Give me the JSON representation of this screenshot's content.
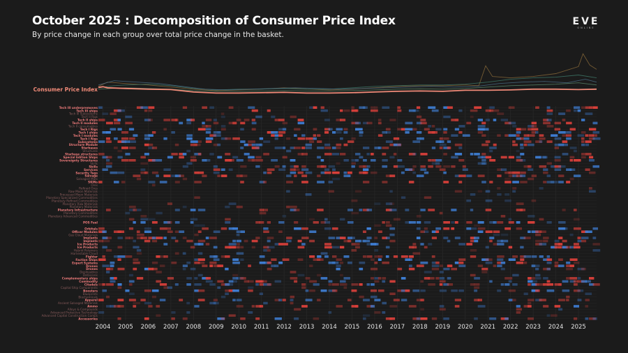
{
  "header": {
    "title": "October 2025 : Decomposition of Consumer Price Index",
    "subtitle": "By price change in each group over total price change in the basket."
  },
  "logo": {
    "main": "EVE",
    "sub": "ONLINE"
  },
  "colors": {
    "background": "#1b1b1b",
    "cpi": "#f08a78",
    "increase": "#d9403a",
    "decrease": "#3f7fd6",
    "group_label_on": "#f07c7c",
    "group_label_off": "#8a5c5c"
  },
  "chart_data": {
    "type": "heatmap",
    "cpi_label": "Consumer Price Index",
    "x": [
      "2004",
      "2005",
      "2006",
      "2007",
      "2008",
      "2009",
      "2010",
      "2011",
      "2012",
      "2013",
      "2014",
      "2015",
      "2016",
      "2017",
      "2018",
      "2019",
      "2020",
      "2021",
      "2022",
      "2023",
      "2024",
      "2025"
    ],
    "xlim": [
      2003.8,
      2025.8
    ],
    "line_series": [
      {
        "points": [
          [
            2003.8,
            1.25
          ],
          [
            2004.0,
            1.35
          ],
          [
            2004.2,
            1.2
          ],
          [
            2005,
            1.1
          ],
          [
            2006,
            1.0
          ],
          [
            2007,
            0.95
          ],
          [
            2008,
            0.6
          ],
          [
            2009,
            0.45
          ],
          [
            2010,
            0.45
          ],
          [
            2011,
            0.5
          ],
          [
            2012,
            0.55
          ],
          [
            2013,
            0.45
          ],
          [
            2014,
            0.45
          ],
          [
            2015,
            0.5
          ],
          [
            2016,
            0.6
          ],
          [
            2017,
            0.7
          ],
          [
            2018,
            0.75
          ],
          [
            2019,
            0.7
          ],
          [
            2020,
            0.85
          ],
          [
            2021,
            0.85
          ],
          [
            2022,
            0.9
          ],
          [
            2023,
            1.0
          ],
          [
            2024,
            1.0
          ],
          [
            2025,
            0.95
          ],
          [
            2025.8,
            1.0
          ]
        ],
        "cpi": true
      },
      {
        "points": [
          [
            2003.8,
            1.4
          ],
          [
            2004.2,
            2.0
          ],
          [
            2005,
            1.8
          ],
          [
            2006,
            1.6
          ],
          [
            2007,
            1.3
          ],
          [
            2008,
            1.0
          ],
          [
            2009,
            0.8
          ],
          [
            2010,
            0.9
          ],
          [
            2011,
            1.0
          ],
          [
            2012,
            1.2
          ],
          [
            2013,
            1.0
          ],
          [
            2014,
            0.9
          ],
          [
            2015,
            1.0
          ],
          [
            2016,
            1.2
          ],
          [
            2017,
            1.4
          ],
          [
            2018,
            1.5
          ],
          [
            2019,
            1.5
          ],
          [
            2020,
            1.6
          ],
          [
            2020.6,
            1.5
          ],
          [
            2020.9,
            4.3
          ],
          [
            2021.2,
            2.8
          ],
          [
            2022,
            2.6
          ],
          [
            2023,
            2.8
          ],
          [
            2024,
            3.2
          ],
          [
            2025,
            4.2
          ],
          [
            2025.2,
            6.0
          ],
          [
            2025.5,
            4.4
          ],
          [
            2025.8,
            3.8
          ]
        ]
      },
      {
        "points": [
          [
            2003.8,
            1.2
          ],
          [
            2004.5,
            1.5
          ],
          [
            2005,
            1.6
          ],
          [
            2006,
            1.7
          ],
          [
            2007,
            1.5
          ],
          [
            2008,
            1.1
          ],
          [
            2009,
            0.9
          ],
          [
            2010,
            1.0
          ],
          [
            2011,
            1.0
          ],
          [
            2012,
            1.1
          ],
          [
            2013,
            1.0
          ],
          [
            2014,
            1.0
          ],
          [
            2015,
            1.2
          ],
          [
            2016,
            1.4
          ],
          [
            2017,
            1.5
          ],
          [
            2018,
            1.6
          ],
          [
            2019,
            1.6
          ],
          [
            2020,
            1.7
          ],
          [
            2021,
            2.0
          ],
          [
            2022,
            2.4
          ],
          [
            2023,
            2.6
          ],
          [
            2024,
            2.7
          ],
          [
            2025,
            3.0
          ],
          [
            2025.8,
            2.6
          ]
        ]
      },
      {
        "points": [
          [
            2003.8,
            1.6
          ],
          [
            2004.5,
            2.2
          ],
          [
            2005.5,
            2.0
          ],
          [
            2006.5,
            1.8
          ],
          [
            2007.5,
            1.4
          ],
          [
            2008.5,
            1.0
          ],
          [
            2009.5,
            0.9
          ],
          [
            2010.5,
            1.0
          ],
          [
            2011.5,
            1.1
          ],
          [
            2012.5,
            1.2
          ],
          [
            2013.5,
            1.1
          ],
          [
            2014.5,
            1.0
          ],
          [
            2015.5,
            1.1
          ],
          [
            2016.5,
            1.2
          ],
          [
            2017.5,
            1.3
          ],
          [
            2018.5,
            1.4
          ],
          [
            2019.5,
            1.3
          ],
          [
            2020.5,
            1.4
          ],
          [
            2021.5,
            1.8
          ],
          [
            2022.5,
            2.0
          ],
          [
            2023.5,
            2.1
          ],
          [
            2024.5,
            1.9
          ],
          [
            2025.3,
            2.4
          ],
          [
            2025.8,
            2.0
          ]
        ]
      },
      {
        "points": [
          [
            2003.8,
            1.0
          ],
          [
            2005,
            1.2
          ],
          [
            2006,
            1.1
          ],
          [
            2007,
            1.0
          ],
          [
            2008,
            0.8
          ],
          [
            2009,
            0.7
          ],
          [
            2010,
            0.7
          ],
          [
            2011,
            0.75
          ],
          [
            2012,
            0.8
          ],
          [
            2013,
            0.75
          ],
          [
            2014,
            0.75
          ],
          [
            2015,
            0.8
          ],
          [
            2016,
            0.9
          ],
          [
            2017,
            1.0
          ],
          [
            2018,
            1.05
          ],
          [
            2019,
            1.0
          ],
          [
            2020,
            1.1
          ],
          [
            2021,
            1.3
          ],
          [
            2022,
            1.5
          ],
          [
            2023,
            1.6
          ],
          [
            2024,
            1.7
          ],
          [
            2025,
            1.9
          ],
          [
            2025.8,
            1.6
          ]
        ]
      }
    ],
    "line_ylim": [
      0,
      6.5
    ],
    "groups": [
      {
        "label": "Tech III underpremoves",
        "emph": true
      },
      {
        "label": "Tech III ships",
        "emph": true
      },
      {
        "label": "Tech III Subsystems",
        "emph": false
      },
      {
        "label": "Tech II Rigs",
        "emph": false
      },
      {
        "label": "Tech II ships",
        "emph": true
      },
      {
        "label": "Tech II modules",
        "emph": true
      },
      {
        "label": "Tech II consumables",
        "emph": false
      },
      {
        "label": "Tech I Rigs",
        "emph": true
      },
      {
        "label": "Tech I ships",
        "emph": true
      },
      {
        "label": "Tech I modules",
        "emph": true
      },
      {
        "label": "Tech I Rigs",
        "emph": true
      },
      {
        "label": "Subsystems",
        "emph": true
      },
      {
        "label": "Structure Module",
        "emph": true
      },
      {
        "label": "Starbases",
        "emph": true
      },
      {
        "label": "Structures",
        "emph": false
      },
      {
        "label": "Starbase structures",
        "emph": true
      },
      {
        "label": "Special Edition Ships",
        "emph": true
      },
      {
        "label": "Sovereignty Structures",
        "emph": true
      },
      {
        "label": "Skills",
        "emph": false
      },
      {
        "label": "Skills",
        "emph": true
      },
      {
        "label": "Services",
        "emph": true
      },
      {
        "label": "Security Tags",
        "emph": true
      },
      {
        "label": "Salvage",
        "emph": true
      },
      {
        "label": "Salvaged Mats",
        "emph": false
      },
      {
        "label": "SKINs",
        "emph": true
      },
      {
        "label": "Ores",
        "emph": false
      },
      {
        "label": "Refined Ores",
        "emph": false
      },
      {
        "label": "Raw Moon Materials",
        "emph": false
      },
      {
        "label": "Processed Moon Materials",
        "emph": false
      },
      {
        "label": "Planetary Specialized Commodities",
        "emph": false
      },
      {
        "label": "Planetary Refined Commodities",
        "emph": false
      },
      {
        "label": "Planetary Raw Materials",
        "emph": false
      },
      {
        "label": "Planetary Materials",
        "emph": false
      },
      {
        "label": "Planetary Infrastructure",
        "emph": true
      },
      {
        "label": "Planetary Commodities",
        "emph": false
      },
      {
        "label": "Planetary Advanced Commodities",
        "emph": false
      },
      {
        "label": "",
        "emph": false
      },
      {
        "label": "POS Fuel",
        "emph": true
      },
      {
        "label": "",
        "emph": false
      },
      {
        "label": "Orbitals",
        "emph": true
      },
      {
        "label": "Officer Modules",
        "emph": true
      },
      {
        "label": "Gas Cloud Materials",
        "emph": false
      },
      {
        "label": "Implants",
        "emph": true
      },
      {
        "label": "Implants",
        "emph": true
      },
      {
        "label": "Ice Products",
        "emph": true
      },
      {
        "label": "Ice Products",
        "emph": true
      },
      {
        "label": "Hybrid Polymers",
        "emph": false
      },
      {
        "label": "Harvestable Cloud",
        "emph": false
      },
      {
        "label": "Fighter",
        "emph": true
      },
      {
        "label": "Faction Ships",
        "emph": true
      },
      {
        "label": "Expert Systems",
        "emph": true
      },
      {
        "label": "Drones",
        "emph": true
      },
      {
        "label": "Drones",
        "emph": true
      },
      {
        "label": "Deployables",
        "emph": false
      },
      {
        "label": "Datacores",
        "emph": false
      },
      {
        "label": "Complementary ships",
        "emph": true
      },
      {
        "label": "Commodity",
        "emph": true
      },
      {
        "label": "Citadels",
        "emph": true
      },
      {
        "label": "Capital Ship Components",
        "emph": false
      },
      {
        "label": "Boosters",
        "emph": true
      },
      {
        "label": "Blueprints",
        "emph": false
      },
      {
        "label": "Biochemicals",
        "emph": false
      },
      {
        "label": "Apparel",
        "emph": true
      },
      {
        "label": "Ancient Salvaged Materials",
        "emph": false
      },
      {
        "label": "Ammo",
        "emph": true
      },
      {
        "label": "Alloys & Compounds",
        "emph": false
      },
      {
        "label": "Advanced Protective Technology",
        "emph": false
      },
      {
        "label": "Advanced Capital Construction Comps",
        "emph": false
      },
      {
        "label": "Accessories",
        "emph": true
      }
    ]
  }
}
